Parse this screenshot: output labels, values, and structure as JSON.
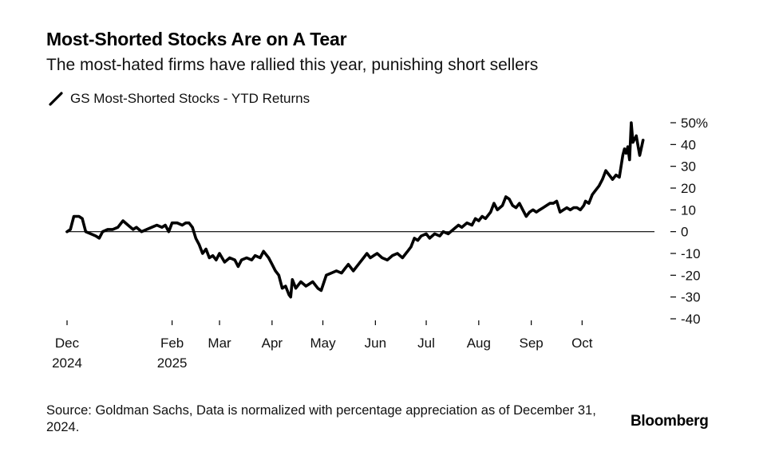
{
  "chart_data": {
    "type": "line",
    "title": "Most-Shorted Stocks Are on A Tear",
    "subtitle": "The most-hated firms have rallied this year, punishing short sellers",
    "legend": [
      {
        "name": "GS Most-Shorted Stocks - YTD Returns",
        "color": "#000000"
      }
    ],
    "xlabel": "",
    "ylabel": "",
    "ylim": [
      -40,
      50
    ],
    "xlim": [
      "2024-12-01",
      "2025-10-31"
    ],
    "y_ticks": [
      50,
      40,
      30,
      20,
      10,
      0,
      -10,
      -20,
      -30,
      -40
    ],
    "y_tick_labels": [
      "50%",
      "40",
      "30",
      "20",
      "10",
      "0",
      "-10",
      "-20",
      "-30",
      "-40"
    ],
    "x_ticks": [
      {
        "date": "2024-12-01",
        "label": "Dec",
        "sublabel": "2024"
      },
      {
        "date": "2025-02-01",
        "label": "Feb",
        "sublabel": "2025"
      },
      {
        "date": "2025-03-01",
        "label": "Mar",
        "sublabel": ""
      },
      {
        "date": "2025-04-01",
        "label": "Apr",
        "sublabel": ""
      },
      {
        "date": "2025-05-01",
        "label": "May",
        "sublabel": ""
      },
      {
        "date": "2025-06-01",
        "label": "Jun",
        "sublabel": ""
      },
      {
        "date": "2025-07-01",
        "label": "Jul",
        "sublabel": ""
      },
      {
        "date": "2025-08-01",
        "label": "Aug",
        "sublabel": ""
      },
      {
        "date": "2025-09-01",
        "label": "Sep",
        "sublabel": ""
      },
      {
        "date": "2025-10-01",
        "label": "Oct",
        "sublabel": ""
      }
    ],
    "reference_line": 0,
    "series": [
      {
        "name": "GS Most-Shorted Stocks - YTD Returns",
        "color": "#000000",
        "points": [
          [
            "2024-12-01",
            0
          ],
          [
            "2024-12-03",
            1
          ],
          [
            "2024-12-05",
            7
          ],
          [
            "2024-12-08",
            7
          ],
          [
            "2024-12-10",
            6
          ],
          [
            "2024-12-12",
            0
          ],
          [
            "2024-12-15",
            -1
          ],
          [
            "2024-12-18",
            -2
          ],
          [
            "2024-12-20",
            -3
          ],
          [
            "2024-12-22",
            0
          ],
          [
            "2024-12-25",
            1
          ],
          [
            "2024-12-28",
            1
          ],
          [
            "2024-12-31",
            2
          ],
          [
            "2025-01-03",
            5
          ],
          [
            "2025-01-06",
            3
          ],
          [
            "2025-01-09",
            1
          ],
          [
            "2025-01-11",
            2
          ],
          [
            "2025-01-14",
            0
          ],
          [
            "2025-01-17",
            1
          ],
          [
            "2025-01-20",
            2
          ],
          [
            "2025-01-23",
            3
          ],
          [
            "2025-01-26",
            2
          ],
          [
            "2025-01-28",
            3
          ],
          [
            "2025-01-30",
            0
          ],
          [
            "2025-02-01",
            4
          ],
          [
            "2025-02-04",
            4
          ],
          [
            "2025-02-07",
            3
          ],
          [
            "2025-02-09",
            4
          ],
          [
            "2025-02-11",
            4
          ],
          [
            "2025-02-13",
            2
          ],
          [
            "2025-02-15",
            -3
          ],
          [
            "2025-02-17",
            -6
          ],
          [
            "2025-02-19",
            -10
          ],
          [
            "2025-02-21",
            -8
          ],
          [
            "2025-02-23",
            -12
          ],
          [
            "2025-02-25",
            -11
          ],
          [
            "2025-02-27",
            -13
          ],
          [
            "2025-03-01",
            -10
          ],
          [
            "2025-03-04",
            -14
          ],
          [
            "2025-03-07",
            -12
          ],
          [
            "2025-03-10",
            -13
          ],
          [
            "2025-03-12",
            -16
          ],
          [
            "2025-03-14",
            -13
          ],
          [
            "2025-03-17",
            -12
          ],
          [
            "2025-03-20",
            -13
          ],
          [
            "2025-03-22",
            -11
          ],
          [
            "2025-03-25",
            -12
          ],
          [
            "2025-03-27",
            -9
          ],
          [
            "2025-03-30",
            -12
          ],
          [
            "2025-04-01",
            -15
          ],
          [
            "2025-04-03",
            -18
          ],
          [
            "2025-04-05",
            -20
          ],
          [
            "2025-04-07",
            -26
          ],
          [
            "2025-04-09",
            -25
          ],
          [
            "2025-04-11",
            -29
          ],
          [
            "2025-04-12",
            -30
          ],
          [
            "2025-04-13",
            -22
          ],
          [
            "2025-04-15",
            -26
          ],
          [
            "2025-04-18",
            -23
          ],
          [
            "2025-04-21",
            -25
          ],
          [
            "2025-04-23",
            -24
          ],
          [
            "2025-04-25",
            -23
          ],
          [
            "2025-04-28",
            -26
          ],
          [
            "2025-04-30",
            -27
          ],
          [
            "2025-05-03",
            -20
          ],
          [
            "2025-05-06",
            -19
          ],
          [
            "2025-05-09",
            -18
          ],
          [
            "2025-05-12",
            -19
          ],
          [
            "2025-05-14",
            -17
          ],
          [
            "2025-05-16",
            -15
          ],
          [
            "2025-05-19",
            -18
          ],
          [
            "2025-05-22",
            -15
          ],
          [
            "2025-05-25",
            -12
          ],
          [
            "2025-05-27",
            -10
          ],
          [
            "2025-05-29",
            -12
          ],
          [
            "2025-05-31",
            -11
          ],
          [
            "2025-06-02",
            -10
          ],
          [
            "2025-06-05",
            -12
          ],
          [
            "2025-06-08",
            -13
          ],
          [
            "2025-06-11",
            -11
          ],
          [
            "2025-06-14",
            -10
          ],
          [
            "2025-06-17",
            -12
          ],
          [
            "2025-06-20",
            -9
          ],
          [
            "2025-06-22",
            -7
          ],
          [
            "2025-06-24",
            -3
          ],
          [
            "2025-06-26",
            -4
          ],
          [
            "2025-06-28",
            -2
          ],
          [
            "2025-07-01",
            -1
          ],
          [
            "2025-07-03",
            -3
          ],
          [
            "2025-07-06",
            -1
          ],
          [
            "2025-07-09",
            -2
          ],
          [
            "2025-07-11",
            0
          ],
          [
            "2025-07-14",
            -1
          ],
          [
            "2025-07-17",
            1
          ],
          [
            "2025-07-20",
            3
          ],
          [
            "2025-07-22",
            2
          ],
          [
            "2025-07-25",
            4
          ],
          [
            "2025-07-28",
            3
          ],
          [
            "2025-07-30",
            6
          ],
          [
            "2025-08-01",
            5
          ],
          [
            "2025-08-03",
            7
          ],
          [
            "2025-08-05",
            6
          ],
          [
            "2025-08-08",
            9
          ],
          [
            "2025-08-10",
            13
          ],
          [
            "2025-08-12",
            10
          ],
          [
            "2025-08-15",
            12
          ],
          [
            "2025-08-17",
            16
          ],
          [
            "2025-08-19",
            15
          ],
          [
            "2025-08-21",
            12
          ],
          [
            "2025-08-23",
            11
          ],
          [
            "2025-08-25",
            13
          ],
          [
            "2025-08-27",
            10
          ],
          [
            "2025-08-29",
            7
          ],
          [
            "2025-08-31",
            9
          ],
          [
            "2025-09-02",
            10
          ],
          [
            "2025-09-04",
            9
          ],
          [
            "2025-09-06",
            10
          ],
          [
            "2025-09-08",
            11
          ],
          [
            "2025-09-10",
            12
          ],
          [
            "2025-09-12",
            13
          ],
          [
            "2025-09-14",
            13
          ],
          [
            "2025-09-16",
            14
          ],
          [
            "2025-09-18",
            9
          ],
          [
            "2025-09-20",
            10
          ],
          [
            "2025-09-22",
            11
          ],
          [
            "2025-09-24",
            10
          ],
          [
            "2025-09-26",
            11
          ],
          [
            "2025-09-28",
            11
          ],
          [
            "2025-09-30",
            10
          ],
          [
            "2025-10-02",
            12
          ],
          [
            "2025-10-03",
            14
          ],
          [
            "2025-10-05",
            13
          ],
          [
            "2025-10-07",
            17
          ],
          [
            "2025-10-09",
            19
          ],
          [
            "2025-10-11",
            21
          ],
          [
            "2025-10-13",
            24
          ],
          [
            "2025-10-15",
            28
          ],
          [
            "2025-10-17",
            26
          ],
          [
            "2025-10-19",
            24
          ],
          [
            "2025-10-21",
            26
          ],
          [
            "2025-10-23",
            25
          ],
          [
            "2025-10-25",
            35
          ],
          [
            "2025-10-26",
            38
          ],
          [
            "2025-10-27",
            36
          ],
          [
            "2025-10-28",
            39
          ],
          [
            "2025-10-29",
            33
          ],
          [
            "2025-10-30",
            50
          ],
          [
            "2025-10-31",
            41
          ],
          [
            "2025-11-02",
            44
          ],
          [
            "2025-11-04",
            35
          ],
          [
            "2025-11-06",
            42
          ]
        ]
      }
    ]
  },
  "footer": {
    "source": "Source: Goldman Sachs, Data is normalized with percentage appreciation as of December 31, 2024.",
    "brand": "Bloomberg"
  }
}
